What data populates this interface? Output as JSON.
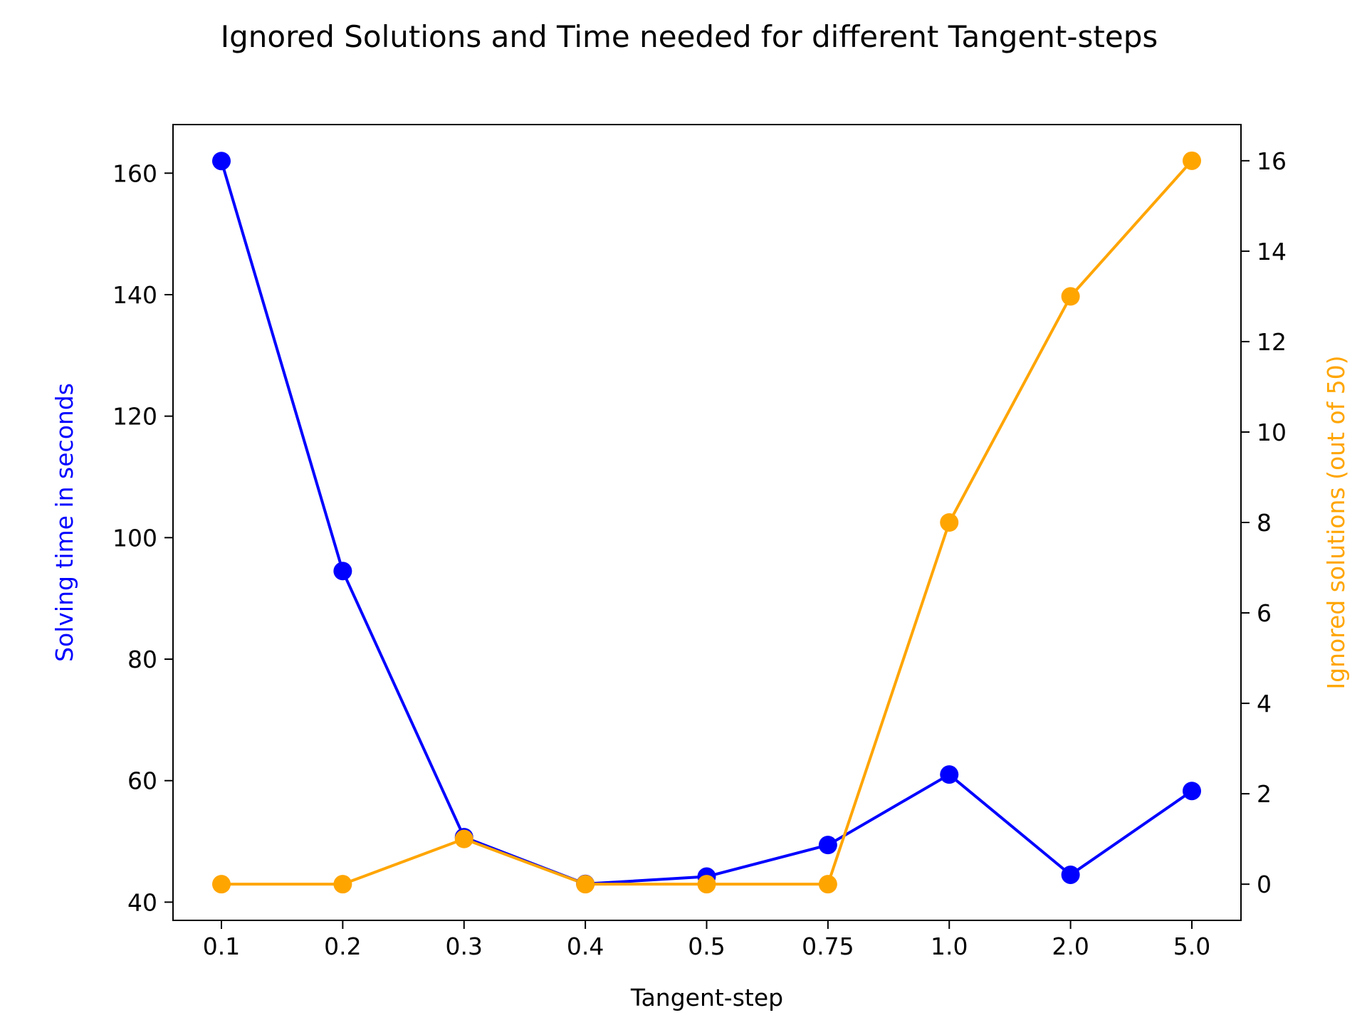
{
  "chart_data": {
    "type": "line",
    "title": "Ignored Solutions and Time needed for different Tangent-steps",
    "xlabel": "Tangent-step",
    "categories": [
      "0.1",
      "0.2",
      "0.3",
      "0.4",
      "0.5",
      "0.75",
      "1.0",
      "2.0",
      "5.0"
    ],
    "y_left": {
      "label": "Solving time in seconds",
      "color": "#0000ff",
      "ylim": [
        37,
        168
      ],
      "ticks": [
        "40",
        "60",
        "80",
        "100",
        "120",
        "140",
        "160"
      ]
    },
    "y_right": {
      "label": "Ignored solutions (out of 50)",
      "color": "#ffa500",
      "ylim": [
        -0.8,
        16.8
      ],
      "ticks": [
        "0",
        "2",
        "4",
        "6",
        "8",
        "10",
        "12",
        "14",
        "16"
      ]
    },
    "series": [
      {
        "axis": "left",
        "color": "#0000ff",
        "values": [
          162,
          94.5,
          50.7,
          43,
          44.2,
          49.4,
          61,
          44.5,
          58.3
        ]
      },
      {
        "axis": "right",
        "color": "#ffa500",
        "values": [
          0,
          0,
          1,
          0,
          0,
          0,
          8,
          13,
          16
        ]
      }
    ],
    "grid": false,
    "legend": "none"
  }
}
